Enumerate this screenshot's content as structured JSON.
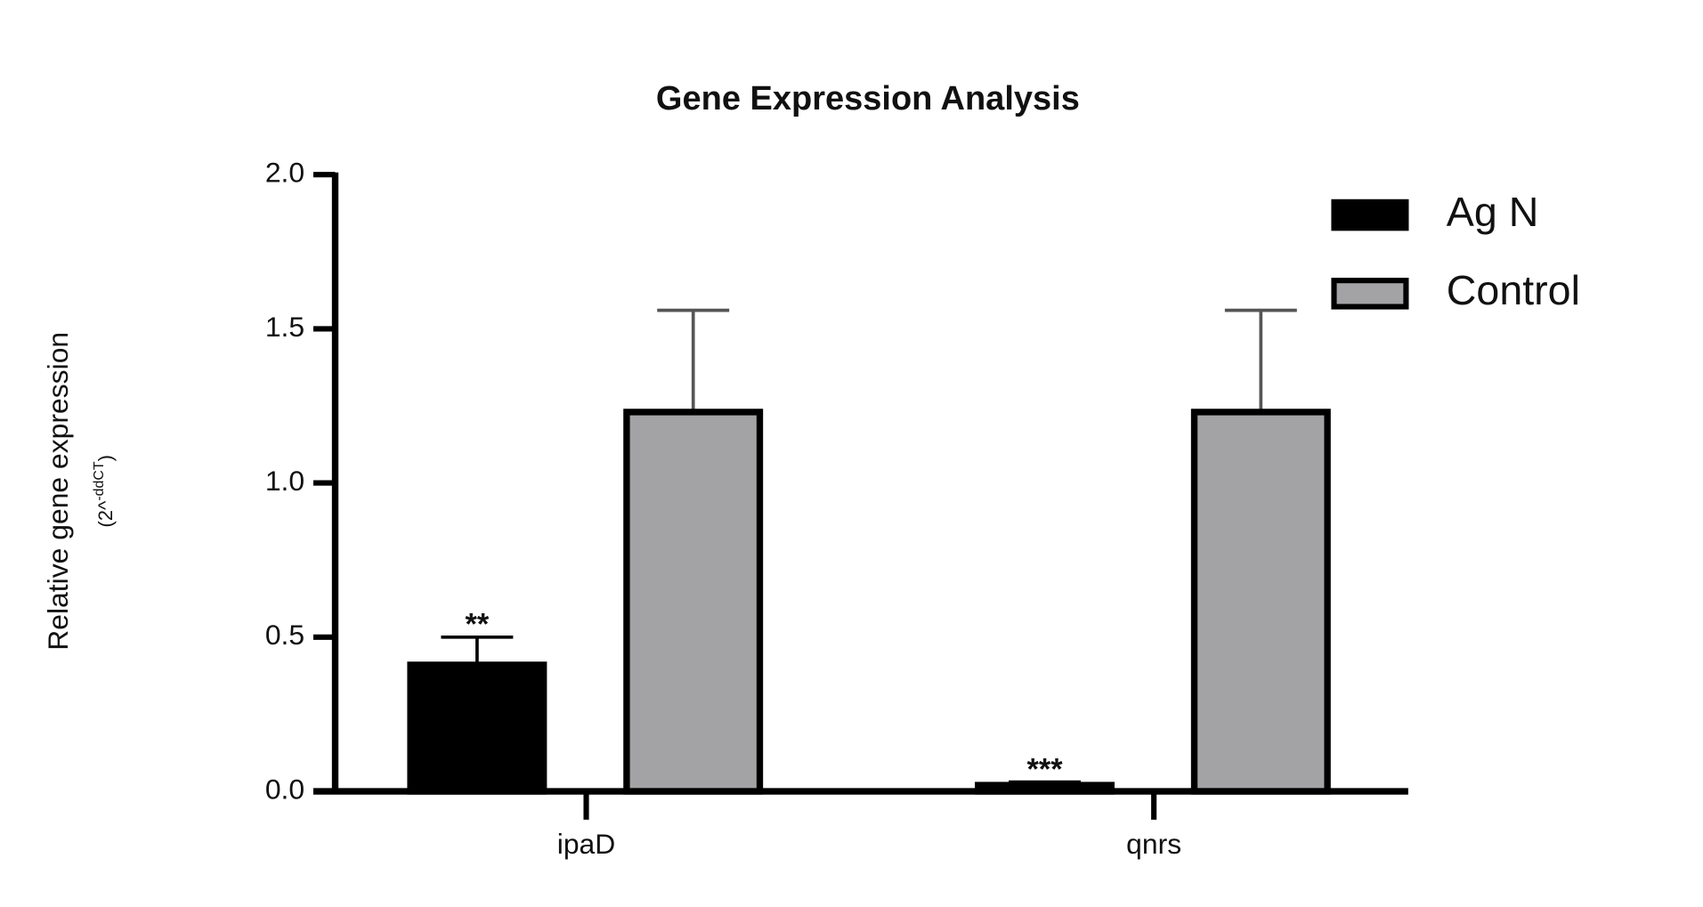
{
  "chart_data": {
    "type": "bar",
    "title": "Gene Expression Analysis",
    "ylabel": "Relative gene expression",
    "ylabel_unit": [
      "(2^",
      "-ddCT",
      ")"
    ],
    "categories": [
      "ipaD",
      "qnrs"
    ],
    "series": [
      {
        "name": "Ag N",
        "color": "#000000",
        "values": [
          0.41,
          0.02
        ],
        "errors": [
          0.09,
          0.01
        ],
        "annotations": [
          "**",
          "***"
        ]
      },
      {
        "name": "Control",
        "color": "#a3a3a6",
        "values": [
          1.23,
          1.23
        ],
        "errors": [
          0.33,
          0.33
        ]
      }
    ],
    "ylim": [
      0,
      2
    ],
    "yticks": [
      {
        "value": 0,
        "label": "0.0"
      },
      {
        "value": 0.5,
        "label": "0.5"
      },
      {
        "value": 1,
        "label": "1.0"
      },
      {
        "value": 1.5,
        "label": "1.5"
      },
      {
        "value": 2,
        "label": "2.0"
      }
    ],
    "legend": "upper right"
  }
}
